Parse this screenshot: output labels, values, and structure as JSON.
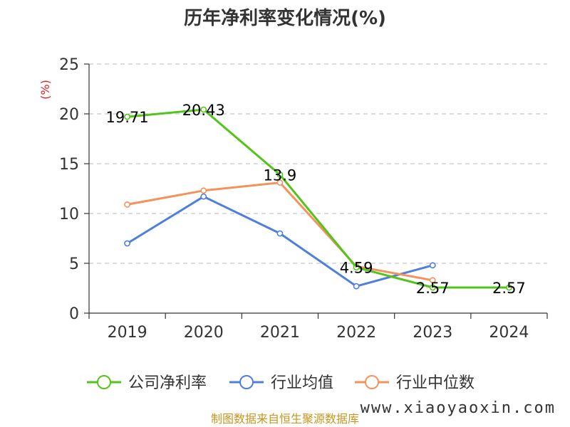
{
  "chart_data": {
    "type": "line",
    "title": "历年净利率变化情况(%)",
    "ylabel": "(%)",
    "categories": [
      "2019",
      "2020",
      "2021",
      "2022",
      "2023",
      "2024"
    ],
    "ylim": [
      0,
      25
    ],
    "yticks": [
      0,
      5,
      10,
      15,
      20,
      25
    ],
    "grid": true,
    "legend_position": "bottom",
    "series": [
      {
        "name": "公司净利率",
        "color": "#52c41a",
        "values": [
          19.71,
          20.43,
          13.9,
          4.59,
          2.57,
          2.57
        ],
        "labels": [
          "19.71",
          "20.43",
          "13.9",
          "4.59",
          "2.57",
          "2.57"
        ]
      },
      {
        "name": "行业均值",
        "color": "#4e7fdc",
        "values": [
          7.0,
          11.7,
          8.0,
          2.7,
          4.8,
          null
        ]
      },
      {
        "name": "行业中位数",
        "color": "#f4925c",
        "values": [
          10.9,
          12.3,
          13.1,
          4.7,
          3.3,
          null
        ]
      }
    ]
  },
  "footer": {
    "source": "制图数据来自恒生聚源数据库",
    "source_color": "#c8961e",
    "watermark": "www.xiaoyaoxin.com"
  }
}
